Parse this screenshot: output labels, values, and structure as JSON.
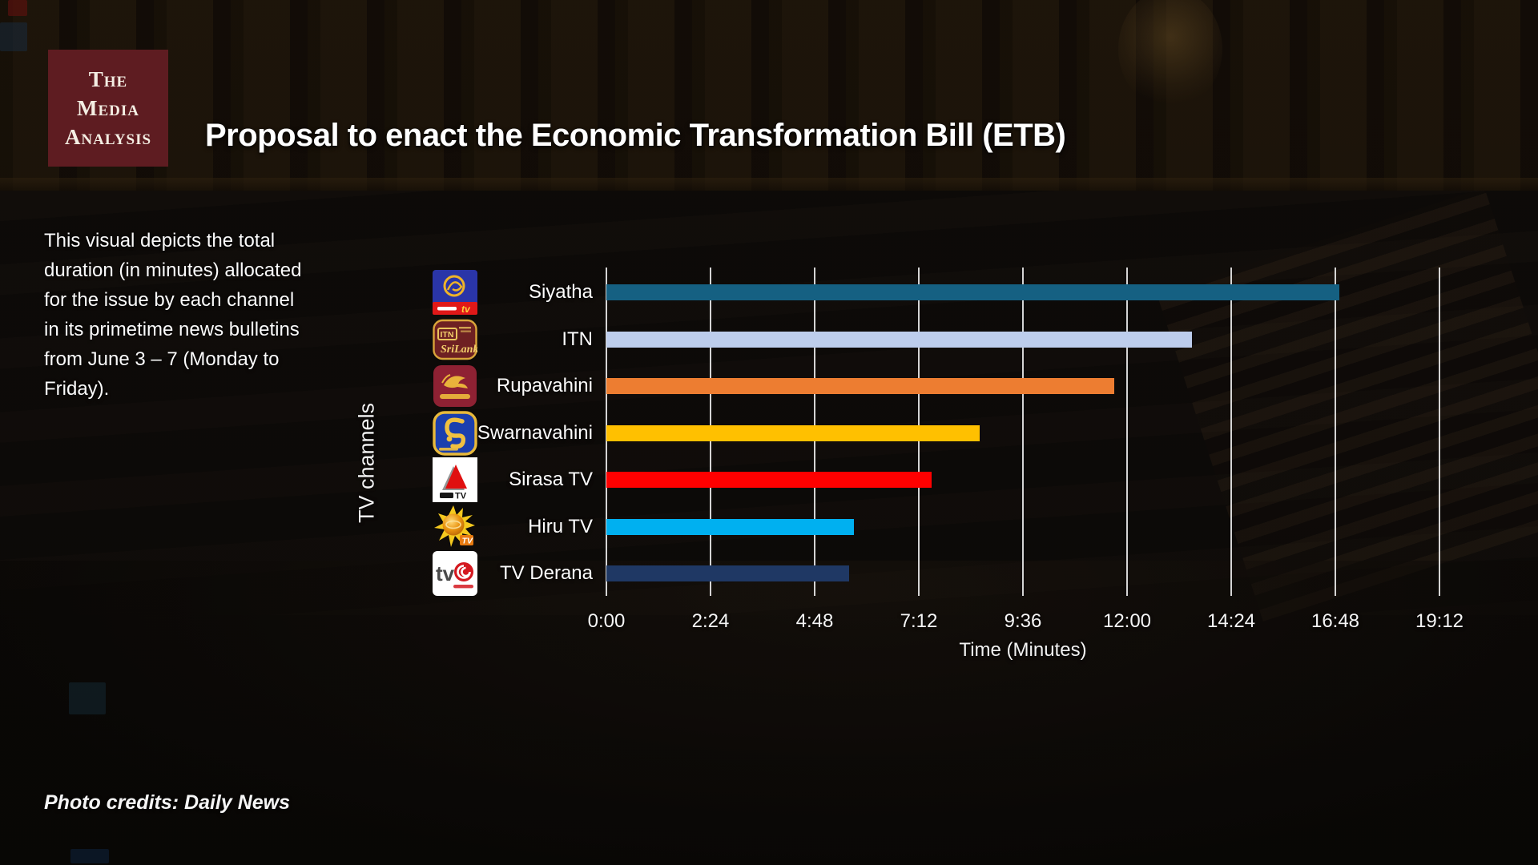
{
  "brand": {
    "line1": "The",
    "line2": "Media",
    "line3": "Analysis",
    "box_color": "#5e1c21"
  },
  "title": "Proposal to enact the Economic Transformation Bill (ETB)",
  "description": "This visual depicts the total duration (in minutes) allocated for the issue by each channel in its primetime news bulletins from June 3 – 7 (Monday to Friday).",
  "photo_credit": "Photo credits: Daily News",
  "chart_data": {
    "type": "bar",
    "orientation": "horizontal",
    "title": "Proposal to enact the Economic Transformation Bill (ETB)",
    "xlabel": "Time (Minutes)",
    "ylabel": "TV channels",
    "categories": [
      "Siyatha",
      "ITN",
      "Rupavahini",
      "Swarnavahini",
      "Sirasa TV",
      "Hiru TV",
      "TV Derana"
    ],
    "values_minutes": [
      16.9,
      13.5,
      11.7,
      8.6,
      7.5,
      5.7,
      5.6
    ],
    "values_mmss_estimate": [
      "16:55",
      "13:28",
      "11:40",
      "8:37",
      "7:31",
      "5:43",
      "5:34"
    ],
    "bar_colors": [
      "#156082",
      "#BDCDEC",
      "#ED7D31",
      "#FFC000",
      "#FF0000",
      "#00B0F0",
      "#1F3864"
    ],
    "channel_logo_icons": [
      "siyatha-tv-logo-icon",
      "itn-logo-icon",
      "rupavahini-logo-icon",
      "swarnavahini-logo-icon",
      "sirasa-tv-logo-icon",
      "hiru-tv-logo-icon",
      "tv-derana-logo-icon"
    ],
    "x_tick_labels": [
      "0:00",
      "2:24",
      "4:48",
      "7:12",
      "9:36",
      "12:00",
      "14:24",
      "16:48",
      "19:12"
    ],
    "x_tick_minutes": [
      0,
      2.4,
      4.8,
      7.2,
      9.6,
      12,
      14.4,
      16.8,
      19.2
    ],
    "xlim_minutes": [
      0,
      19.2
    ],
    "grid": "vertical-white-gridlines",
    "legend": "none"
  }
}
